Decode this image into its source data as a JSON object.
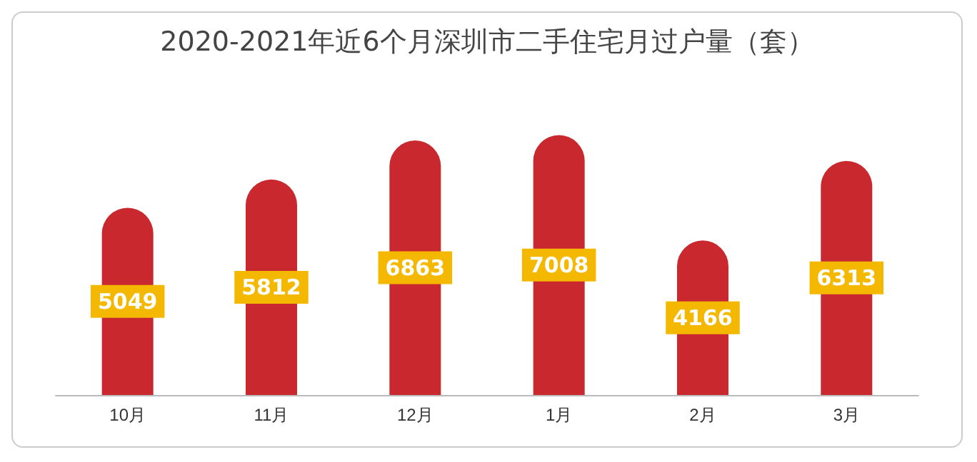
{
  "chart_data": {
    "type": "bar",
    "title": "2020-2021年近6个月深圳市二手住宅月过户量（套）",
    "categories": [
      "10月",
      "11月",
      "12月",
      "1月",
      "2月",
      "3月"
    ],
    "values": [
      5049,
      5812,
      6863,
      7008,
      4166,
      6313
    ],
    "color": "#c8282e",
    "data_labels": true
  }
}
